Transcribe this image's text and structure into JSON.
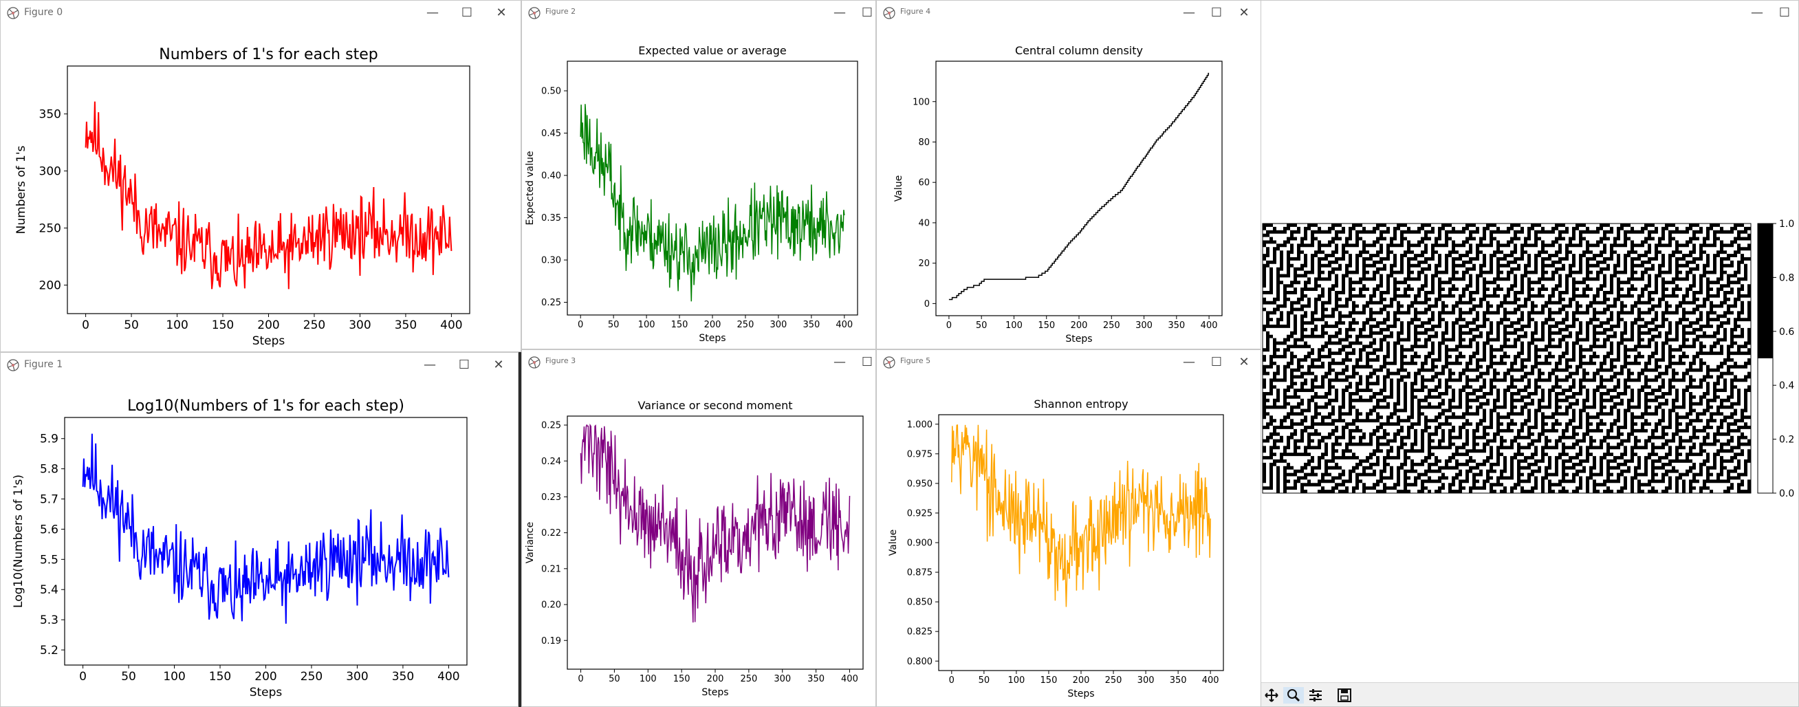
{
  "windows": [
    {
      "id": "fig0",
      "title": "Figure 0",
      "color": "#ff0000",
      "chart_data": {
        "type": "line",
        "title": "Numbers of 1's for each step",
        "xlabel": "Steps",
        "ylabel": "Numbers of 1's",
        "xlim": [
          -20,
          420
        ],
        "ylim": [
          175,
          392
        ],
        "xticks": [
          0,
          50,
          100,
          150,
          200,
          250,
          300,
          350,
          400
        ],
        "yticks": [
          200,
          250,
          300,
          350
        ],
        "yfmt": 0,
        "grid": false,
        "trend": [
          [
            0,
            340
          ],
          [
            10,
            330
          ],
          [
            25,
            305
          ],
          [
            45,
            285
          ],
          [
            60,
            255
          ],
          [
            80,
            245
          ],
          [
            100,
            240
          ],
          [
            130,
            230
          ],
          [
            165,
            218
          ],
          [
            190,
            225
          ],
          [
            210,
            228
          ],
          [
            230,
            232
          ],
          [
            260,
            245
          ],
          [
            300,
            248
          ],
          [
            350,
            245
          ],
          [
            400,
            242
          ]
        ],
        "noise": 22,
        "seed": 11,
        "n": 400
      }
    },
    {
      "id": "fig1",
      "title": "Figure 1",
      "color": "#0000ff",
      "chart_data": {
        "type": "line",
        "title": "Log10(Numbers of 1's for each step)",
        "xlabel": "Steps",
        "ylabel": "Log10(Numbers of 1's)",
        "xlim": [
          -20,
          420
        ],
        "ylim": [
          5.15,
          5.97
        ],
        "xticks": [
          0,
          50,
          100,
          150,
          200,
          250,
          300,
          350,
          400
        ],
        "yticks": [
          5.2,
          5.3,
          5.4,
          5.5,
          5.6,
          5.7,
          5.8,
          5.9
        ],
        "yfmt": 1,
        "grid": false,
        "trend": [
          [
            0,
            5.82
          ],
          [
            10,
            5.79
          ],
          [
            25,
            5.71
          ],
          [
            45,
            5.65
          ],
          [
            60,
            5.55
          ],
          [
            80,
            5.5
          ],
          [
            100,
            5.48
          ],
          [
            130,
            5.44
          ],
          [
            165,
            5.38
          ],
          [
            190,
            5.41
          ],
          [
            210,
            5.42
          ],
          [
            230,
            5.43
          ],
          [
            260,
            5.49
          ],
          [
            300,
            5.51
          ],
          [
            350,
            5.5
          ],
          [
            400,
            5.49
          ]
        ],
        "noise": 0.09,
        "seed": 11,
        "n": 400
      }
    },
    {
      "id": "fig2",
      "title": "Figure 2",
      "color": "#008000",
      "chart_data": {
        "type": "line",
        "title": "Expected value or average",
        "xlabel": "Steps",
        "ylabel": "Expected value",
        "xlim": [
          -20,
          420
        ],
        "ylim": [
          0.235,
          0.535
        ],
        "xticks": [
          0,
          50,
          100,
          150,
          200,
          250,
          300,
          350,
          400
        ],
        "yticks": [
          0.25,
          0.3,
          0.35,
          0.4,
          0.45,
          0.5
        ],
        "yfmt": 2,
        "grid": false,
        "trend": [
          [
            0,
            0.46
          ],
          [
            10,
            0.45
          ],
          [
            25,
            0.42
          ],
          [
            45,
            0.4
          ],
          [
            60,
            0.35
          ],
          [
            80,
            0.34
          ],
          [
            100,
            0.33
          ],
          [
            130,
            0.32
          ],
          [
            165,
            0.3
          ],
          [
            190,
            0.31
          ],
          [
            210,
            0.315
          ],
          [
            230,
            0.32
          ],
          [
            260,
            0.34
          ],
          [
            300,
            0.345
          ],
          [
            350,
            0.34
          ],
          [
            400,
            0.335
          ]
        ],
        "noise": 0.032,
        "seed": 23,
        "n": 400
      }
    },
    {
      "id": "fig3",
      "title": "Figure 3",
      "color": "#800080",
      "chart_data": {
        "type": "line",
        "title": "Variance or second moment",
        "xlabel": "Steps",
        "ylabel": "Variance",
        "xlim": [
          -20,
          420
        ],
        "ylim": [
          0.182,
          0.2525
        ],
        "xticks": [
          0,
          50,
          100,
          150,
          200,
          250,
          300,
          350,
          400
        ],
        "yticks": [
          0.19,
          0.2,
          0.21,
          0.22,
          0.23,
          0.24,
          0.25
        ],
        "yfmt": 2,
        "grid": false,
        "trend": [
          [
            0,
            0.248
          ],
          [
            10,
            0.247
          ],
          [
            25,
            0.243
          ],
          [
            45,
            0.24
          ],
          [
            60,
            0.229
          ],
          [
            80,
            0.225
          ],
          [
            100,
            0.222
          ],
          [
            130,
            0.219
          ],
          [
            165,
            0.21
          ],
          [
            190,
            0.213
          ],
          [
            210,
            0.215
          ],
          [
            230,
            0.216
          ],
          [
            260,
            0.222
          ],
          [
            300,
            0.224
          ],
          [
            350,
            0.223
          ],
          [
            400,
            0.222
          ]
        ],
        "noise": 0.009,
        "seed": 37,
        "n": 400,
        "cap": 0.25
      }
    },
    {
      "id": "fig4",
      "title": "Figure 4",
      "color": "#000000",
      "chart_data": {
        "type": "line",
        "title": "Central column density",
        "xlabel": "Steps",
        "ylabel": "Value",
        "xlim": [
          -20,
          420
        ],
        "ylim": [
          -6,
          120
        ],
        "xticks": [
          0,
          50,
          100,
          150,
          200,
          250,
          300,
          350,
          400
        ],
        "yticks": [
          0,
          20,
          40,
          60,
          80,
          100
        ],
        "yfmt": 0,
        "grid": false,
        "trend": [
          [
            0,
            2
          ],
          [
            10,
            3
          ],
          [
            20,
            6
          ],
          [
            30,
            8
          ],
          [
            45,
            9
          ],
          [
            55,
            12
          ],
          [
            70,
            12
          ],
          [
            100,
            12
          ],
          [
            135,
            13
          ],
          [
            150,
            16
          ],
          [
            160,
            20
          ],
          [
            170,
            24
          ],
          [
            185,
            30
          ],
          [
            200,
            35
          ],
          [
            215,
            41
          ],
          [
            230,
            46
          ],
          [
            250,
            52
          ],
          [
            265,
            56
          ],
          [
            280,
            63
          ],
          [
            300,
            72
          ],
          [
            320,
            81
          ],
          [
            340,
            88
          ],
          [
            360,
            96
          ],
          [
            380,
            104
          ],
          [
            400,
            114
          ]
        ],
        "noise": 0,
        "seed": 1,
        "n": 400,
        "step": true
      }
    },
    {
      "id": "fig5",
      "title": "Figure 5",
      "color": "#ffa500",
      "chart_data": {
        "type": "line",
        "title": "Shannon entropy",
        "xlabel": "Steps",
        "ylabel": "Value",
        "xlim": [
          -20,
          420
        ],
        "ylim": [
          0.792,
          1.008
        ],
        "xticks": [
          0,
          50,
          100,
          150,
          200,
          250,
          300,
          350,
          400
        ],
        "yticks": [
          0.8,
          0.825,
          0.85,
          0.875,
          0.9,
          0.925,
          0.95,
          0.975,
          1.0
        ],
        "yfmt": 3,
        "grid": false,
        "trend": [
          [
            0,
            0.995
          ],
          [
            10,
            0.993
          ],
          [
            25,
            0.98
          ],
          [
            45,
            0.965
          ],
          [
            60,
            0.94
          ],
          [
            80,
            0.93
          ],
          [
            100,
            0.925
          ],
          [
            130,
            0.915
          ],
          [
            165,
            0.89
          ],
          [
            190,
            0.9
          ],
          [
            210,
            0.905
          ],
          [
            230,
            0.908
          ],
          [
            260,
            0.925
          ],
          [
            300,
            0.93
          ],
          [
            350,
            0.928
          ],
          [
            400,
            0.925
          ]
        ],
        "noise": 0.03,
        "seed": 53,
        "n": 400,
        "cap": 1.0
      }
    },
    {
      "id": "fig6",
      "title": "",
      "chart_data": {
        "type": "heatmap",
        "colorbar_ticks": [
          0.0,
          0.2,
          0.4,
          0.6,
          0.8,
          1.0
        ],
        "colorbar_range": [
          0,
          1
        ],
        "cmap": "binary"
      },
      "toolbar": {
        "coords_text": ""
      }
    }
  ]
}
